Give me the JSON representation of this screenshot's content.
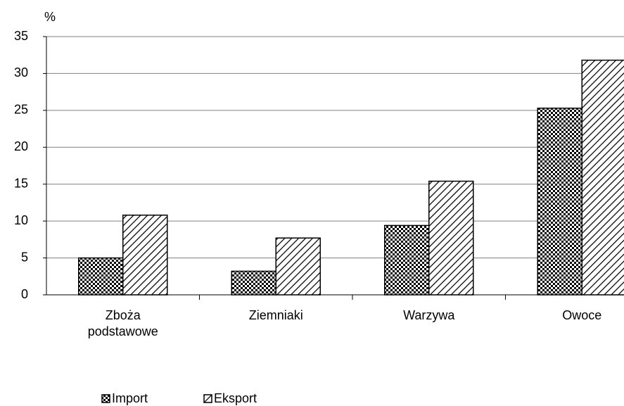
{
  "chart_data": {
    "type": "bar",
    "y_label": "%",
    "categories": [
      "Zboża podstawowe",
      "Ziemniaki",
      "Warzywa",
      "Owoce"
    ],
    "series": [
      {
        "name": "Import",
        "color": "#000000",
        "pattern": "checker",
        "values": [
          5.0,
          3.2,
          9.4,
          25.3
        ]
      },
      {
        "name": "Eksport",
        "color": "#000000",
        "pattern": "hatch",
        "values": [
          10.8,
          7.7,
          15.4,
          31.8
        ]
      }
    ],
    "ylim": [
      0,
      35
    ],
    "yticks": [
      0,
      5,
      10,
      15,
      20,
      25,
      30,
      35
    ],
    "grid": true
  }
}
